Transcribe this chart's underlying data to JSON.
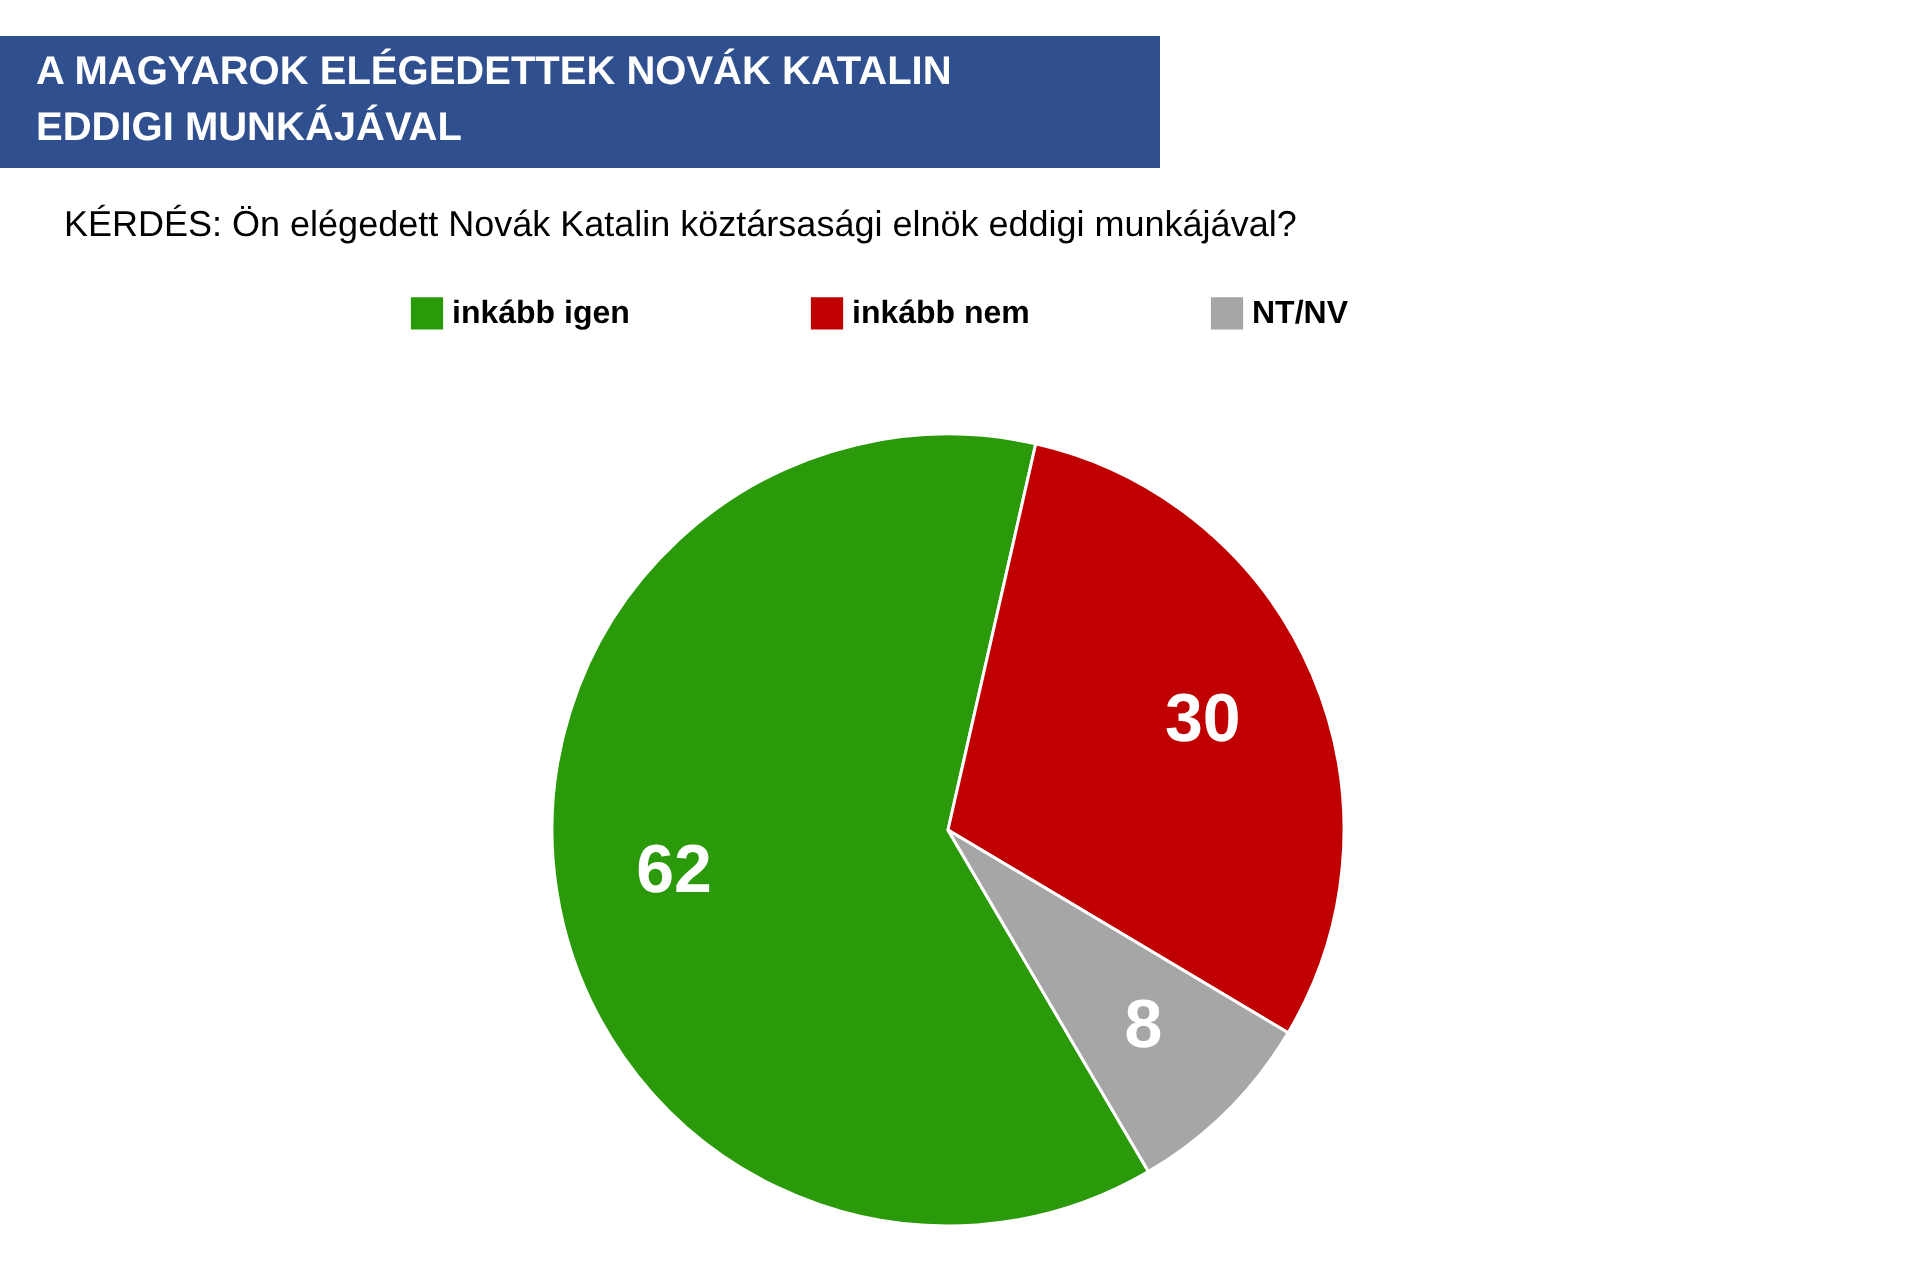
{
  "chart_data": {
    "type": "pie",
    "title": "A MAGYAROK ELÉGEDETTEK NOVÁK KATALIN EDDIGI MUNKÁJÁVAL",
    "subtitle": "KÉRDÉS: Ön elégedett Novák Katalin köztársasági elnök eddigi munkájával?",
    "categories": [
      "inkább igen",
      "inkább nem",
      "NT/NV"
    ],
    "values": [
      62,
      30,
      8
    ],
    "colors": [
      "#2a9a0a",
      "#c00000",
      "#a6a6a6"
    ],
    "data_labels": true,
    "legend": "top"
  }
}
